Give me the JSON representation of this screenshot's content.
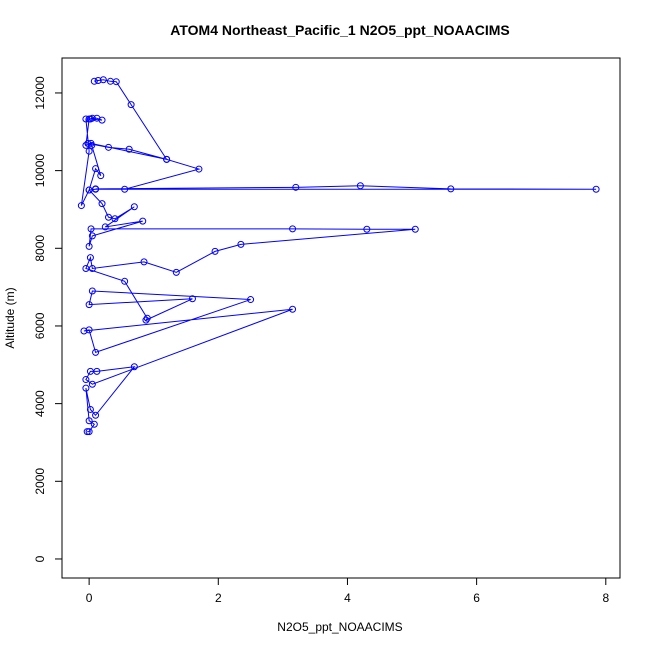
{
  "chart_data": {
    "type": "line",
    "title": "ATOM4 Northeast_Pacific_1 N2O5_ppt_NOAACIMS",
    "x_label": "N2O5_ppt_NOAACIMS",
    "y_label": "Altitude (m)",
    "xlim": [
      -0.42,
      8.22
    ],
    "ylim": [
      -490,
      12900
    ],
    "xticks": [
      0,
      2,
      4,
      6,
      8
    ],
    "yticks": [
      0,
      2000,
      4000,
      6000,
      8000,
      10000,
      12000
    ],
    "series": [
      {
        "color": "#0000ff",
        "x": [
          0.08,
          0.14,
          0.22,
          0.33,
          0.42,
          0.65,
          1.2,
          1.7,
          0.55,
          0.1,
          3.2,
          4.2,
          5.6,
          7.85,
          0.1,
          0.0,
          0.1,
          0.18,
          0.04,
          -0.02,
          0.3,
          0.62,
          1.2,
          0.03,
          -0.05,
          0.0,
          0.05,
          0.12,
          0.2,
          0.02,
          -0.05,
          0.0,
          -0.12,
          0.0,
          0.2,
          0.3,
          0.4,
          0.7,
          0.25,
          0.83,
          0.05,
          0.0,
          0.03,
          3.15,
          4.3,
          5.05,
          2.35,
          1.95,
          1.35,
          0.85,
          0.05,
          0.02,
          -0.05,
          0.55,
          0.9,
          0.88,
          1.6,
          0.0,
          0.05,
          2.5,
          0.1,
          0.0,
          -0.08,
          3.15,
          0.05,
          -0.05,
          0.02,
          0.12,
          0.7,
          0.1,
          0.02,
          -0.05,
          0.0,
          0.08,
          0.0,
          -0.03
        ],
        "values": [
          12300,
          12320,
          12340,
          12300,
          12290,
          11700,
          10290,
          10040,
          9520,
          9530,
          9570,
          9610,
          9530,
          9520,
          9520,
          9500,
          10050,
          9870,
          10650,
          10700,
          10600,
          10550,
          10290,
          10700,
          10650,
          11330,
          11350,
          11350,
          11300,
          11330,
          11330,
          10500,
          9100,
          9500,
          9150,
          8800,
          8760,
          9070,
          8550,
          8700,
          8320,
          8050,
          8500,
          8500,
          8490,
          8490,
          8100,
          7920,
          7380,
          7650,
          7480,
          7760,
          7480,
          7150,
          6200,
          6150,
          6700,
          6550,
          6900,
          6680,
          5320,
          5900,
          5870,
          6430,
          4500,
          4620,
          4830,
          4830,
          4950,
          3700,
          3850,
          4400,
          3560,
          3470,
          3280,
          3280
        ]
      }
    ]
  }
}
